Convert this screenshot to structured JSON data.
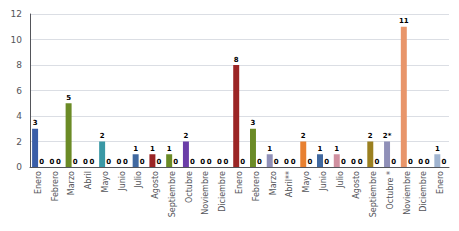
{
  "chart_data": {
    "type": "bar",
    "categories": [
      "Enero",
      "Febrero",
      "Marzo",
      "Abril",
      "Mayo",
      "Junio",
      "Julio",
      "Agosto",
      "Septiembre",
      "Octubre",
      "Noviembre",
      "Diciembre",
      "Enero",
      "Febrero",
      "Marzo",
      "Abril**",
      "Mayo",
      "Junio",
      "Julio",
      "Agosto",
      "Septiembre",
      "Octubre *",
      "Noviembre",
      "Diciembre",
      "Enero"
    ],
    "series": [
      {
        "values": [
          3,
          0,
          5,
          0,
          2,
          0,
          1,
          1,
          1,
          2,
          0,
          0,
          8,
          3,
          1,
          0,
          2,
          1,
          1,
          0,
          2,
          2,
          11,
          0,
          1
        ],
        "value_labels": [
          "3",
          "0",
          "5",
          "0",
          "2",
          "0",
          "1",
          "1",
          "1",
          "2",
          "0",
          "0",
          "8",
          "3",
          "1",
          "0",
          "2",
          "1",
          "1",
          "0",
          "2",
          "2*",
          "11",
          "0",
          "1"
        ],
        "colors": [
          "#3A5EA8",
          "#6B8B26",
          "#6B8B26",
          "#3A98A5",
          "#3A98A5",
          "#9B8020",
          "#4169A0",
          "#9B2525",
          "#6B8B26",
          "#6B3EA8",
          "#9B8020",
          "#AA4040",
          "#9B2525",
          "#6B8B26",
          "#9090B8",
          "#3A98A5",
          "#E88030",
          "#4169A0",
          "#D090A0",
          "#8080C0",
          "#9B8020",
          "#9090B8",
          "#E8956A",
          "#B0B0B0",
          "#A0B4D0"
        ]
      },
      {
        "values": [
          0,
          0,
          0,
          0,
          0,
          0,
          0,
          0,
          0,
          0,
          0,
          0,
          0,
          0,
          0,
          0,
          0,
          0,
          0,
          0,
          0,
          0,
          0,
          0,
          0
        ],
        "color": "#AAAAAA"
      }
    ],
    "ylim": [
      0,
      12
    ],
    "yticks": [
      0,
      2,
      4,
      6,
      8,
      10,
      12
    ],
    "grid": true,
    "data_labels": true
  }
}
